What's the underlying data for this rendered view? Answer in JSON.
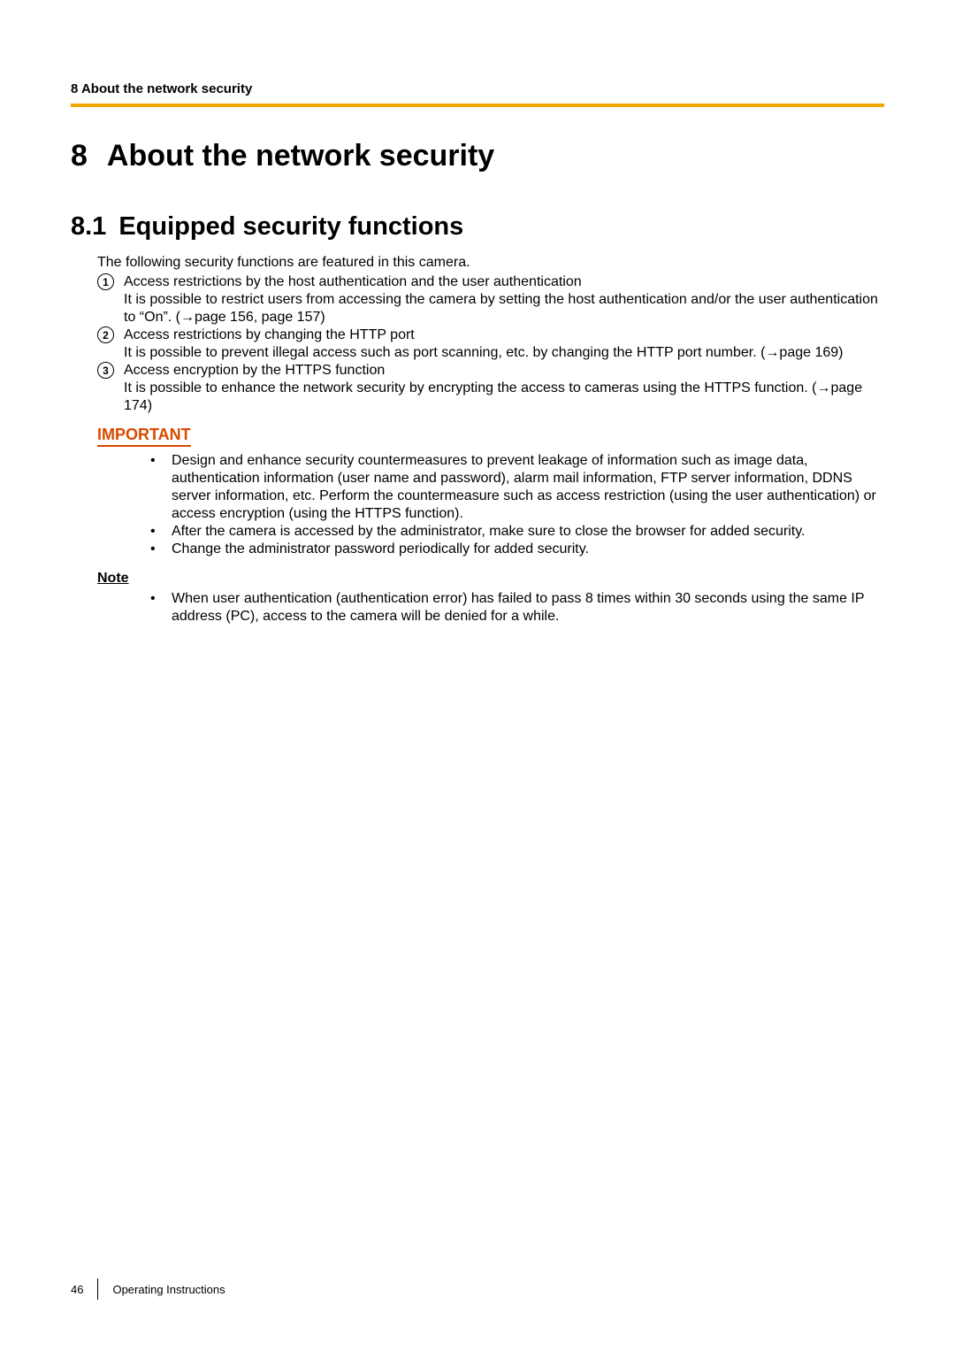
{
  "colors": {
    "accent_rule": "#f3a800",
    "important": "#d84a00",
    "text": "#000000",
    "background": "#ffffff"
  },
  "header": {
    "running": "8 About the network security"
  },
  "h1": {
    "number": "8",
    "text": "About the network security"
  },
  "h2": {
    "number": "8.1",
    "text": "Equipped security functions"
  },
  "intro": "The following security functions are featured in this camera.",
  "items": [
    {
      "marker": "1",
      "title": "Access restrictions by the host authentication and the user authentication",
      "detail_pre": "It is possible to restrict users from accessing the camera by setting the host authentication and/or the user authentication to “On”. (",
      "detail_ref": "page 156, page 157)"
    },
    {
      "marker": "2",
      "title": "Access restrictions by changing the HTTP port",
      "detail_pre": "It is possible to prevent illegal access such as port scanning, etc. by changing the HTTP port number. (",
      "detail_ref": "page 169)"
    },
    {
      "marker": "3",
      "title": "Access encryption by the HTTPS function",
      "detail_pre": "It is possible to enhance the network security by encrypting the access to cameras using the HTTPS function. (",
      "detail_ref": "page 174)"
    }
  ],
  "important": {
    "label": "IMPORTANT",
    "bullets": [
      "Design and enhance security countermeasures to prevent leakage of information such as image data, authentication information (user name and password), alarm mail information, FTP server information, DDNS server information, etc. Perform the countermeasure such as access restriction (using the user authentication) or access encryption (using the HTTPS function).",
      "After the camera is accessed by the administrator, make sure to close the browser for added security.",
      "Change the administrator password periodically for added security."
    ]
  },
  "note": {
    "label": "Note",
    "bullets": [
      "When user authentication (authentication error) has failed to pass 8 times within 30 seconds using the same IP address (PC), access to the camera will be denied for a while."
    ]
  },
  "footer": {
    "page_number": "46",
    "doc_title": "Operating Instructions"
  }
}
